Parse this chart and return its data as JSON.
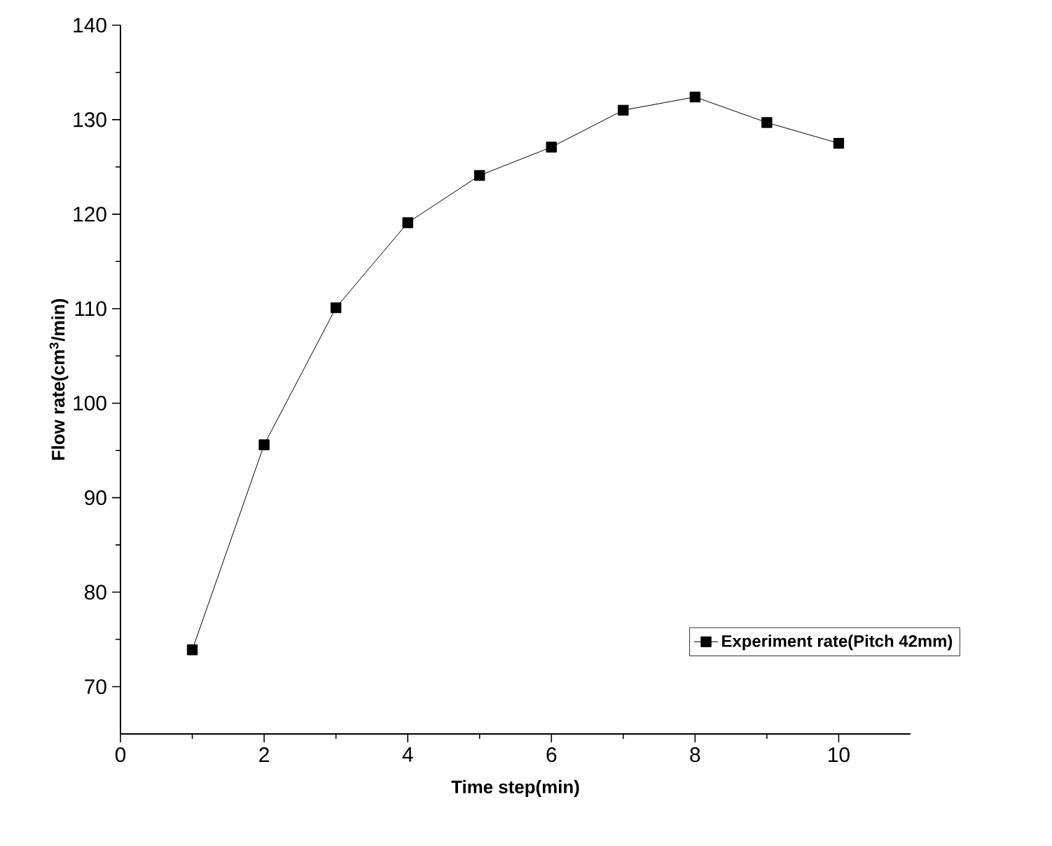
{
  "chart_data": {
    "type": "line",
    "xlabel": "Time step(min)",
    "ylabel": "Flow rate(cm$^{3}$/min)",
    "x": [
      1,
      2,
      3,
      4,
      5,
      6,
      7,
      8,
      9,
      10
    ],
    "series": [
      {
        "name": "Experiment rate(Pitch 42mm)",
        "color": "#000000",
        "values": [
          73.9,
          95.6,
          110.1,
          119.1,
          124.1,
          127.1,
          131.0,
          132.4,
          129.7,
          127.5
        ]
      }
    ],
    "xlim": [
      0,
      11
    ],
    "xticks": [
      0,
      2,
      4,
      6,
      8,
      10
    ],
    "ylim": [
      65,
      140
    ],
    "yticks": [
      70,
      80,
      90,
      100,
      110,
      120,
      130,
      140
    ],
    "grid": false,
    "legend": "bottom right",
    "marker": "square",
    "line_style": "solid"
  }
}
